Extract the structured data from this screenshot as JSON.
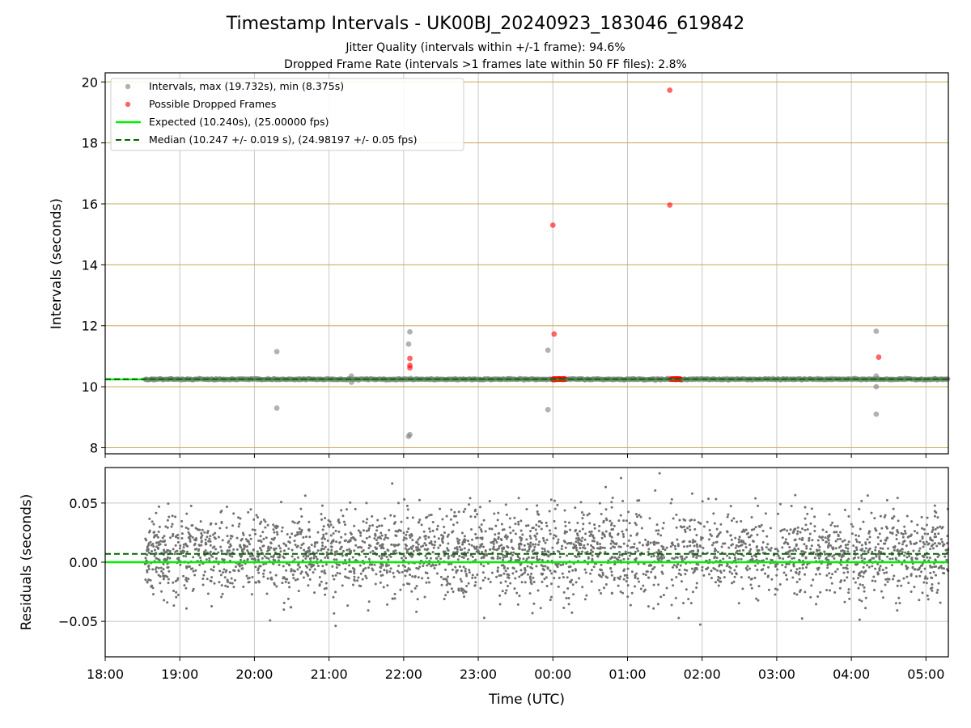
{
  "figure": {
    "title": "Timestamp Intervals - UK00BJ_20240923_183046_619842",
    "subtitle_jitter": "Jitter Quality (intervals within +/-1 frame): 94.6%",
    "subtitle_dropped": "Dropped Frame Rate (intervals >1 frames late within 50 FF files): 2.8%"
  },
  "colors": {
    "intervals": "#7f7f7f",
    "dropped": "#ff0000",
    "expected": "#00ee00",
    "median": "#006400",
    "hgrid": "#c8a850",
    "vgrid": "#c8c8c8",
    "residuals": "#707070"
  },
  "chart_data": [
    {
      "type": "scatter",
      "id": "intervals",
      "ylabel": "Intervals (seconds)",
      "xlim": [
        "18:00",
        "05:18"
      ],
      "ylim": [
        7.8,
        20.3
      ],
      "yticks": [
        8,
        10,
        12,
        14,
        16,
        18,
        20
      ],
      "grid": true,
      "legend_placement": "top-left",
      "legend": [
        "Intervals, max (19.732s), min (8.375s)",
        "Possible Dropped Frames",
        "Expected (10.240s), (25.00000 fps)",
        "Median (10.247 +/- 0.019 s), (24.98197 +/- 0.05 fps)"
      ],
      "expected": 10.24,
      "median": 10.247,
      "baseline": {
        "x_start": "18:32",
        "x_end": "05:18",
        "y": 10.247
      },
      "series": [
        {
          "name": "Intervals, max (19.732s), min (8.375s)",
          "points": [
            {
              "x": "20:18",
              "y": 11.15
            },
            {
              "x": "20:18",
              "y": 9.3
            },
            {
              "x": "21:18",
              "y": 10.35
            },
            {
              "x": "21:18",
              "y": 10.15
            },
            {
              "x": "22:05",
              "y": 11.8
            },
            {
              "x": "22:04",
              "y": 11.4
            },
            {
              "x": "22:05",
              "y": 8.43
            },
            {
              "x": "22:04",
              "y": 8.37
            },
            {
              "x": "23:56",
              "y": 11.2
            },
            {
              "x": "23:56",
              "y": 9.25
            },
            {
              "x": "04:20",
              "y": 11.82
            },
            {
              "x": "04:20",
              "y": 10.35
            },
            {
              "x": "04:20",
              "y": 10.0
            },
            {
              "x": "04:20",
              "y": 9.1
            }
          ]
        },
        {
          "name": "Possible Dropped Frames",
          "points": [
            {
              "x": "22:05",
              "y": 10.93
            },
            {
              "x": "22:05",
              "y": 10.7
            },
            {
              "x": "22:05",
              "y": 10.62
            },
            {
              "x": "00:00",
              "y": 15.3
            },
            {
              "x": "00:01",
              "y": 11.73
            },
            {
              "x": "01:34",
              "y": 19.73
            },
            {
              "x": "01:34",
              "y": 15.96
            },
            {
              "x": "04:22",
              "y": 10.97
            }
          ],
          "clusters": [
            {
              "x_start": "00:00",
              "x_end": "00:10",
              "y": 10.25
            },
            {
              "x_start": "01:35",
              "x_end": "01:43",
              "y": 10.25
            }
          ]
        }
      ]
    },
    {
      "type": "scatter",
      "id": "residuals",
      "xlabel": "Time (UTC)",
      "ylabel": "Residuals (seconds)",
      "xlim": [
        "18:00",
        "05:18"
      ],
      "ylim": [
        -0.08,
        0.08
      ],
      "yticks": [
        -0.05,
        0.0,
        0.05
      ],
      "ytick_labels": [
        "−0.05",
        "0.00",
        "0.05"
      ],
      "xticks": [
        "18:00",
        "19:00",
        "20:00",
        "21:00",
        "22:00",
        "23:00",
        "00:00",
        "01:00",
        "02:00",
        "03:00",
        "04:00",
        "05:00"
      ],
      "grid": true,
      "expected": 0.0,
      "median": 0.007,
      "distribution": {
        "x_start": "18:32",
        "x_end": "05:18",
        "center": 0.007,
        "spread": 0.018,
        "count": 3100
      }
    }
  ]
}
